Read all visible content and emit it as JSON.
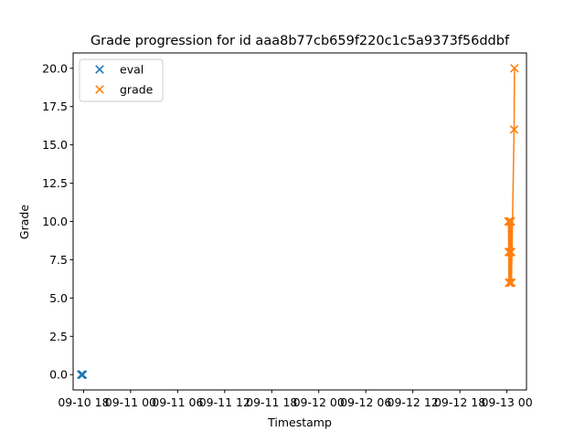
{
  "chart_data": {
    "type": "scatter",
    "title": "Grade progression for id aaa8b77cb659f220c1c5a9373f56ddbf",
    "xlabel": "Timestamp",
    "ylabel": "Grade",
    "x_axis": {
      "kind": "date",
      "ticks": [
        "09-10 18",
        "09-11 00",
        "09-11 06",
        "09-11 12",
        "09-11 18",
        "09-12 00",
        "09-12 06",
        "09-12 12",
        "09-12 18",
        "09-13 00"
      ],
      "xlim": [
        "2024-09-10 16:40",
        "2024-09-13 02:30"
      ]
    },
    "y_axis": {
      "ticks": [
        "0.0",
        "2.5",
        "5.0",
        "7.5",
        "10.0",
        "12.5",
        "15.0",
        "17.5",
        "20.0"
      ],
      "ylim": [
        -1,
        21
      ]
    },
    "legend": {
      "position": "top-left"
    },
    "grid": false,
    "series": [
      {
        "name": "eval",
        "color": "#1f77b4",
        "marker": "x",
        "line": false,
        "points": [
          {
            "x": "2024-09-10 17:42",
            "y": 0
          },
          {
            "x": "2024-09-10 17:45",
            "y": 0
          },
          {
            "x": "2024-09-10 17:49",
            "y": 0
          },
          {
            "x": "2024-09-10 17:54",
            "y": 0
          }
        ]
      },
      {
        "name": "grade",
        "color": "#ff7f0e",
        "marker": "x",
        "line": true,
        "points": [
          {
            "x": "2024-09-13 00:12",
            "y": 10
          },
          {
            "x": "2024-09-13 00:14",
            "y": 8
          },
          {
            "x": "2024-09-13 00:16",
            "y": 6
          },
          {
            "x": "2024-09-13 00:18",
            "y": 10
          },
          {
            "x": "2024-09-13 00:20",
            "y": 8
          },
          {
            "x": "2024-09-13 00:22",
            "y": 6
          },
          {
            "x": "2024-09-13 00:24",
            "y": 10
          },
          {
            "x": "2024-09-13 00:26",
            "y": 8
          },
          {
            "x": "2024-09-13 00:28",
            "y": 6
          },
          {
            "x": "2024-09-13 00:31",
            "y": 10
          },
          {
            "x": "2024-09-13 00:33",
            "y": 8
          },
          {
            "x": "2024-09-13 00:35",
            "y": 6
          },
          {
            "x": "2024-09-13 00:55",
            "y": 16
          },
          {
            "x": "2024-09-13 00:58",
            "y": 20
          }
        ]
      }
    ]
  }
}
